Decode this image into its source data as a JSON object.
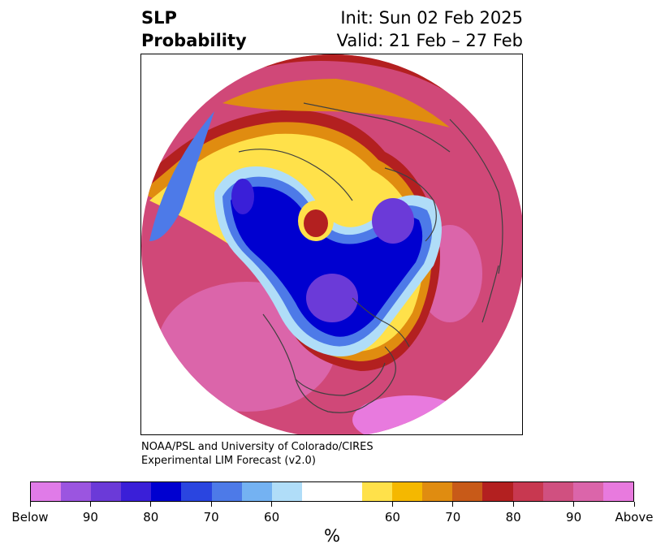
{
  "title": {
    "left_line1": "SLP",
    "left_line2": "Probability",
    "init": "Init: Sun 02 Feb 2025",
    "valid": "Valid: 21 Feb – 27 Feb"
  },
  "credit": {
    "line1": "NOAA/PSL and University of Colorado/CIRES",
    "line2": "Experimental LIM Forecast (v2.0)"
  },
  "colorbar": {
    "colors": [
      "#e07be8",
      "#9b55e0",
      "#6b3ad8",
      "#3a1fd8",
      "#0000d0",
      "#2a45e0",
      "#4d7ae8",
      "#74b2f2",
      "#b0ddf8",
      "#ffffff",
      "#ffffff",
      "#ffe14a",
      "#f5b800",
      "#e08c10",
      "#c85a18",
      "#b32020",
      "#c83850",
      "#d05080",
      "#db65aa",
      "#e87ade"
    ],
    "tick_labels": [
      "Below",
      "90",
      "80",
      "70",
      "60",
      "60",
      "70",
      "80",
      "90",
      "Above"
    ],
    "unit": "%"
  },
  "map_colors": {
    "strong_below": "#6b3ad8",
    "below": "#0000d0",
    "moderate_below": "#4d7ae8",
    "weak_below": "#b0ddf8",
    "weak_above": "#ffe14a",
    "moderate_above": "#e08c10",
    "above": "#b32020",
    "strong_above": "#d05080",
    "coastline": "#404040"
  }
}
